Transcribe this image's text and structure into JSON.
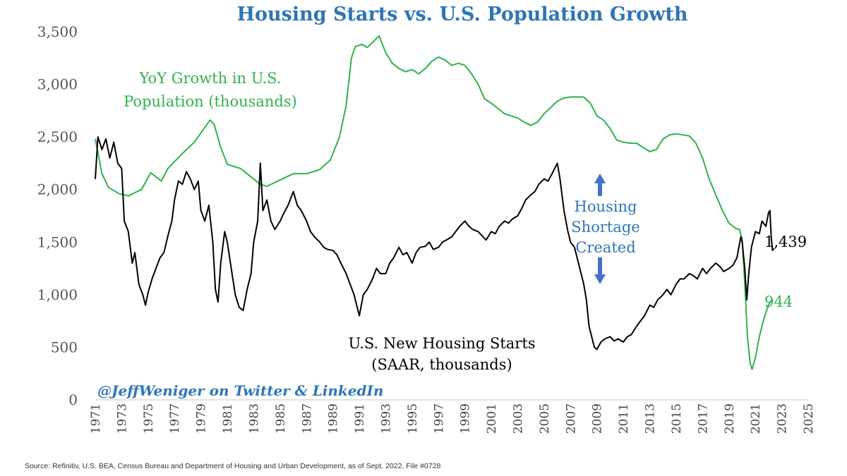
{
  "chart_data": {
    "type": "line",
    "title": "Housing Starts vs. U.S. Population Growth",
    "title_color": "#2e75b6",
    "ylim": [
      0,
      3500
    ],
    "y_ticks": [
      "0",
      "500",
      "1,000",
      "1,500",
      "2,000",
      "2,500",
      "3,000",
      "3,500"
    ],
    "x_ticks": [
      "1971",
      "1973",
      "1975",
      "1977",
      "1979",
      "1981",
      "1983",
      "1985",
      "1987",
      "1989",
      "1991",
      "1993",
      "1995",
      "1997",
      "1999",
      "2001",
      "2003",
      "2005",
      "2007",
      "2009",
      "2011",
      "2013",
      "2015",
      "2017",
      "2019",
      "2021",
      "2023",
      "2025"
    ],
    "xlim": [
      1971,
      2025
    ],
    "grid": false,
    "series": [
      {
        "name": "YoY Growth in U.S. Population (thousands)",
        "label_lines": [
          "YoY Growth in U.S.",
          "Population (thousands)"
        ],
        "color": "#2fb34a",
        "end_label": "944",
        "points": [
          [
            1971.0,
            2480
          ],
          [
            1971.5,
            2150
          ],
          [
            1972.0,
            2020
          ],
          [
            1972.8,
            1960
          ],
          [
            1973.5,
            1940
          ],
          [
            1974.5,
            2000
          ],
          [
            1975.2,
            2160
          ],
          [
            1975.6,
            2120
          ],
          [
            1976.0,
            2080
          ],
          [
            1976.5,
            2200
          ],
          [
            1977.5,
            2330
          ],
          [
            1978.5,
            2450
          ],
          [
            1979.3,
            2590
          ],
          [
            1979.7,
            2660
          ],
          [
            1980.0,
            2620
          ],
          [
            1980.5,
            2400
          ],
          [
            1981.0,
            2240
          ],
          [
            1982.0,
            2200
          ],
          [
            1983.0,
            2100
          ],
          [
            1983.5,
            2050
          ],
          [
            1984.0,
            2030
          ],
          [
            1985.0,
            2090
          ],
          [
            1986.0,
            2150
          ],
          [
            1987.0,
            2150
          ],
          [
            1988.0,
            2190
          ],
          [
            1988.8,
            2280
          ],
          [
            1989.5,
            2500
          ],
          [
            1990.0,
            2800
          ],
          [
            1990.4,
            3250
          ],
          [
            1990.7,
            3360
          ],
          [
            1991.2,
            3380
          ],
          [
            1991.6,
            3350
          ],
          [
            1992.0,
            3400
          ],
          [
            1992.5,
            3460
          ],
          [
            1993.0,
            3300
          ],
          [
            1993.5,
            3200
          ],
          [
            1994.0,
            3150
          ],
          [
            1994.5,
            3120
          ],
          [
            1995.0,
            3140
          ],
          [
            1995.5,
            3100
          ],
          [
            1996.0,
            3150
          ],
          [
            1996.5,
            3220
          ],
          [
            1997.0,
            3260
          ],
          [
            1997.5,
            3230
          ],
          [
            1998.0,
            3180
          ],
          [
            1998.5,
            3200
          ],
          [
            1999.0,
            3180
          ],
          [
            1999.5,
            3100
          ],
          [
            2000.0,
            3000
          ],
          [
            2000.5,
            2860
          ],
          [
            2001.0,
            2820
          ],
          [
            2002.0,
            2720
          ],
          [
            2003.0,
            2680
          ],
          [
            2003.5,
            2640
          ],
          [
            2004.0,
            2610
          ],
          [
            2004.5,
            2640
          ],
          [
            2005.0,
            2720
          ],
          [
            2005.5,
            2780
          ],
          [
            2006.0,
            2840
          ],
          [
            2006.5,
            2870
          ],
          [
            2007.0,
            2880
          ],
          [
            2008.0,
            2880
          ],
          [
            2008.5,
            2820
          ],
          [
            2009.0,
            2700
          ],
          [
            2009.5,
            2660
          ],
          [
            2010.0,
            2580
          ],
          [
            2010.5,
            2470
          ],
          [
            2011.0,
            2450
          ],
          [
            2011.5,
            2440
          ],
          [
            2012.0,
            2440
          ],
          [
            2012.5,
            2400
          ],
          [
            2013.0,
            2360
          ],
          [
            2013.5,
            2380
          ],
          [
            2014.0,
            2480
          ],
          [
            2014.5,
            2520
          ],
          [
            2015.0,
            2530
          ],
          [
            2015.5,
            2520
          ],
          [
            2016.0,
            2510
          ],
          [
            2016.5,
            2440
          ],
          [
            2017.0,
            2300
          ],
          [
            2017.5,
            2100
          ],
          [
            2018.0,
            1950
          ],
          [
            2018.5,
            1800
          ],
          [
            2019.0,
            1680
          ],
          [
            2019.5,
            1630
          ],
          [
            2019.8,
            1620
          ],
          [
            2020.0,
            1520
          ],
          [
            2020.2,
            1100
          ],
          [
            2020.4,
            600
          ],
          [
            2020.6,
            350
          ],
          [
            2020.75,
            290
          ],
          [
            2021.0,
            400
          ],
          [
            2021.3,
            600
          ],
          [
            2021.6,
            750
          ],
          [
            2021.9,
            870
          ],
          [
            2022.1,
            930
          ],
          [
            2022.3,
            944
          ]
        ]
      },
      {
        "name": "U.S. New Housing Starts (SAAR, thousands)",
        "label_lines": [
          "U.S. New Housing Starts",
          "(SAAR, thousands)"
        ],
        "color": "#000000",
        "end_label": "1,439",
        "points": [
          [
            1971.0,
            2100
          ],
          [
            1971.2,
            2500
          ],
          [
            1971.5,
            2380
          ],
          [
            1971.8,
            2480
          ],
          [
            1972.1,
            2300
          ],
          [
            1972.4,
            2450
          ],
          [
            1972.7,
            2250
          ],
          [
            1973.0,
            2200
          ],
          [
            1973.2,
            1700
          ],
          [
            1973.5,
            1600
          ],
          [
            1973.8,
            1300
          ],
          [
            1974.0,
            1400
          ],
          [
            1974.3,
            1100
          ],
          [
            1974.6,
            1000
          ],
          [
            1974.8,
            900
          ],
          [
            1975.0,
            1020
          ],
          [
            1975.3,
            1150
          ],
          [
            1975.6,
            1250
          ],
          [
            1975.9,
            1350
          ],
          [
            1976.2,
            1400
          ],
          [
            1976.5,
            1560
          ],
          [
            1976.8,
            1700
          ],
          [
            1977.0,
            1900
          ],
          [
            1977.3,
            2080
          ],
          [
            1977.6,
            2050
          ],
          [
            1977.9,
            2170
          ],
          [
            1978.2,
            2100
          ],
          [
            1978.5,
            2000
          ],
          [
            1978.8,
            2080
          ],
          [
            1979.0,
            1800
          ],
          [
            1979.3,
            1700
          ],
          [
            1979.6,
            1850
          ],
          [
            1979.9,
            1500
          ],
          [
            1980.1,
            1050
          ],
          [
            1980.3,
            930
          ],
          [
            1980.5,
            1300
          ],
          [
            1980.8,
            1600
          ],
          [
            1981.0,
            1500
          ],
          [
            1981.3,
            1250
          ],
          [
            1981.6,
            1000
          ],
          [
            1981.9,
            880
          ],
          [
            1982.2,
            850
          ],
          [
            1982.5,
            1050
          ],
          [
            1982.8,
            1200
          ],
          [
            1983.0,
            1500
          ],
          [
            1983.3,
            1700
          ],
          [
            1983.5,
            2250
          ],
          [
            1983.7,
            1800
          ],
          [
            1984.0,
            1900
          ],
          [
            1984.3,
            1700
          ],
          [
            1984.6,
            1620
          ],
          [
            1985.0,
            1700
          ],
          [
            1985.3,
            1780
          ],
          [
            1985.6,
            1850
          ],
          [
            1986.0,
            1980
          ],
          [
            1986.3,
            1850
          ],
          [
            1986.6,
            1800
          ],
          [
            1987.0,
            1700
          ],
          [
            1987.3,
            1600
          ],
          [
            1987.6,
            1550
          ],
          [
            1988.0,
            1500
          ],
          [
            1988.3,
            1450
          ],
          [
            1988.6,
            1430
          ],
          [
            1989.0,
            1420
          ],
          [
            1989.3,
            1380
          ],
          [
            1989.6,
            1300
          ],
          [
            1990.0,
            1200
          ],
          [
            1990.3,
            1100
          ],
          [
            1990.6,
            1000
          ],
          [
            1990.9,
            850
          ],
          [
            1991.0,
            800
          ],
          [
            1991.3,
            1000
          ],
          [
            1991.6,
            1050
          ],
          [
            1992.0,
            1150
          ],
          [
            1992.3,
            1250
          ],
          [
            1992.6,
            1200
          ],
          [
            1993.0,
            1200
          ],
          [
            1993.3,
            1300
          ],
          [
            1993.6,
            1350
          ],
          [
            1994.0,
            1450
          ],
          [
            1994.3,
            1380
          ],
          [
            1994.6,
            1400
          ],
          [
            1995.0,
            1300
          ],
          [
            1995.3,
            1400
          ],
          [
            1995.6,
            1450
          ],
          [
            1996.0,
            1460
          ],
          [
            1996.3,
            1500
          ],
          [
            1996.6,
            1430
          ],
          [
            1997.0,
            1450
          ],
          [
            1997.3,
            1500
          ],
          [
            1997.6,
            1520
          ],
          [
            1998.0,
            1550
          ],
          [
            1998.3,
            1600
          ],
          [
            1998.6,
            1650
          ],
          [
            1999.0,
            1700
          ],
          [
            1999.3,
            1650
          ],
          [
            1999.6,
            1620
          ],
          [
            2000.0,
            1600
          ],
          [
            2000.3,
            1560
          ],
          [
            2000.6,
            1520
          ],
          [
            2001.0,
            1600
          ],
          [
            2001.3,
            1580
          ],
          [
            2001.6,
            1650
          ],
          [
            2002.0,
            1700
          ],
          [
            2002.3,
            1680
          ],
          [
            2002.6,
            1720
          ],
          [
            2003.0,
            1750
          ],
          [
            2003.3,
            1820
          ],
          [
            2003.6,
            1900
          ],
          [
            2004.0,
            1950
          ],
          [
            2004.3,
            1980
          ],
          [
            2004.6,
            2050
          ],
          [
            2005.0,
            2100
          ],
          [
            2005.3,
            2080
          ],
          [
            2005.6,
            2150
          ],
          [
            2006.0,
            2250
          ],
          [
            2006.2,
            2100
          ],
          [
            2006.5,
            1800
          ],
          [
            2006.8,
            1600
          ],
          [
            2007.0,
            1500
          ],
          [
            2007.3,
            1450
          ],
          [
            2007.6,
            1300
          ],
          [
            2008.0,
            1100
          ],
          [
            2008.2,
            950
          ],
          [
            2008.4,
            700
          ],
          [
            2008.6,
            600
          ],
          [
            2008.8,
            500
          ],
          [
            2009.0,
            480
          ],
          [
            2009.3,
            550
          ],
          [
            2009.6,
            580
          ],
          [
            2010.0,
            600
          ],
          [
            2010.3,
            560
          ],
          [
            2010.6,
            580
          ],
          [
            2011.0,
            550
          ],
          [
            2011.3,
            600
          ],
          [
            2011.6,
            620
          ],
          [
            2012.0,
            700
          ],
          [
            2012.3,
            750
          ],
          [
            2012.6,
            800
          ],
          [
            2013.0,
            900
          ],
          [
            2013.3,
            880
          ],
          [
            2013.6,
            950
          ],
          [
            2014.0,
            1000
          ],
          [
            2014.3,
            1050
          ],
          [
            2014.6,
            1000
          ],
          [
            2015.0,
            1100
          ],
          [
            2015.3,
            1150
          ],
          [
            2015.6,
            1150
          ],
          [
            2016.0,
            1200
          ],
          [
            2016.3,
            1180
          ],
          [
            2016.6,
            1150
          ],
          [
            2017.0,
            1250
          ],
          [
            2017.3,
            1200
          ],
          [
            2017.6,
            1250
          ],
          [
            2018.0,
            1300
          ],
          [
            2018.3,
            1270
          ],
          [
            2018.6,
            1220
          ],
          [
            2019.0,
            1250
          ],
          [
            2019.3,
            1280
          ],
          [
            2019.6,
            1350
          ],
          [
            2019.9,
            1550
          ],
          [
            2020.0,
            1500
          ],
          [
            2020.2,
            1250
          ],
          [
            2020.35,
            950
          ],
          [
            2020.5,
            1200
          ],
          [
            2020.7,
            1450
          ],
          [
            2021.0,
            1600
          ],
          [
            2021.3,
            1580
          ],
          [
            2021.5,
            1700
          ],
          [
            2021.8,
            1650
          ],
          [
            2022.0,
            1780
          ],
          [
            2022.1,
            1800
          ],
          [
            2022.2,
            1550
          ],
          [
            2022.3,
            1420
          ],
          [
            2022.4,
            1439
          ]
        ]
      }
    ],
    "annotation": {
      "lines": [
        "Housing",
        "Shortage",
        "Created"
      ],
      "color": "#2e75b6"
    },
    "watermark": "@JeffWeniger on Twitter & LinkedIn",
    "watermark_color": "#2e75b6"
  },
  "source_note": "Source: Refinitiv, U.S. BEA, Census Bureau and Department of Housing and Urban Development, as of Sept. 2022. File #0728"
}
